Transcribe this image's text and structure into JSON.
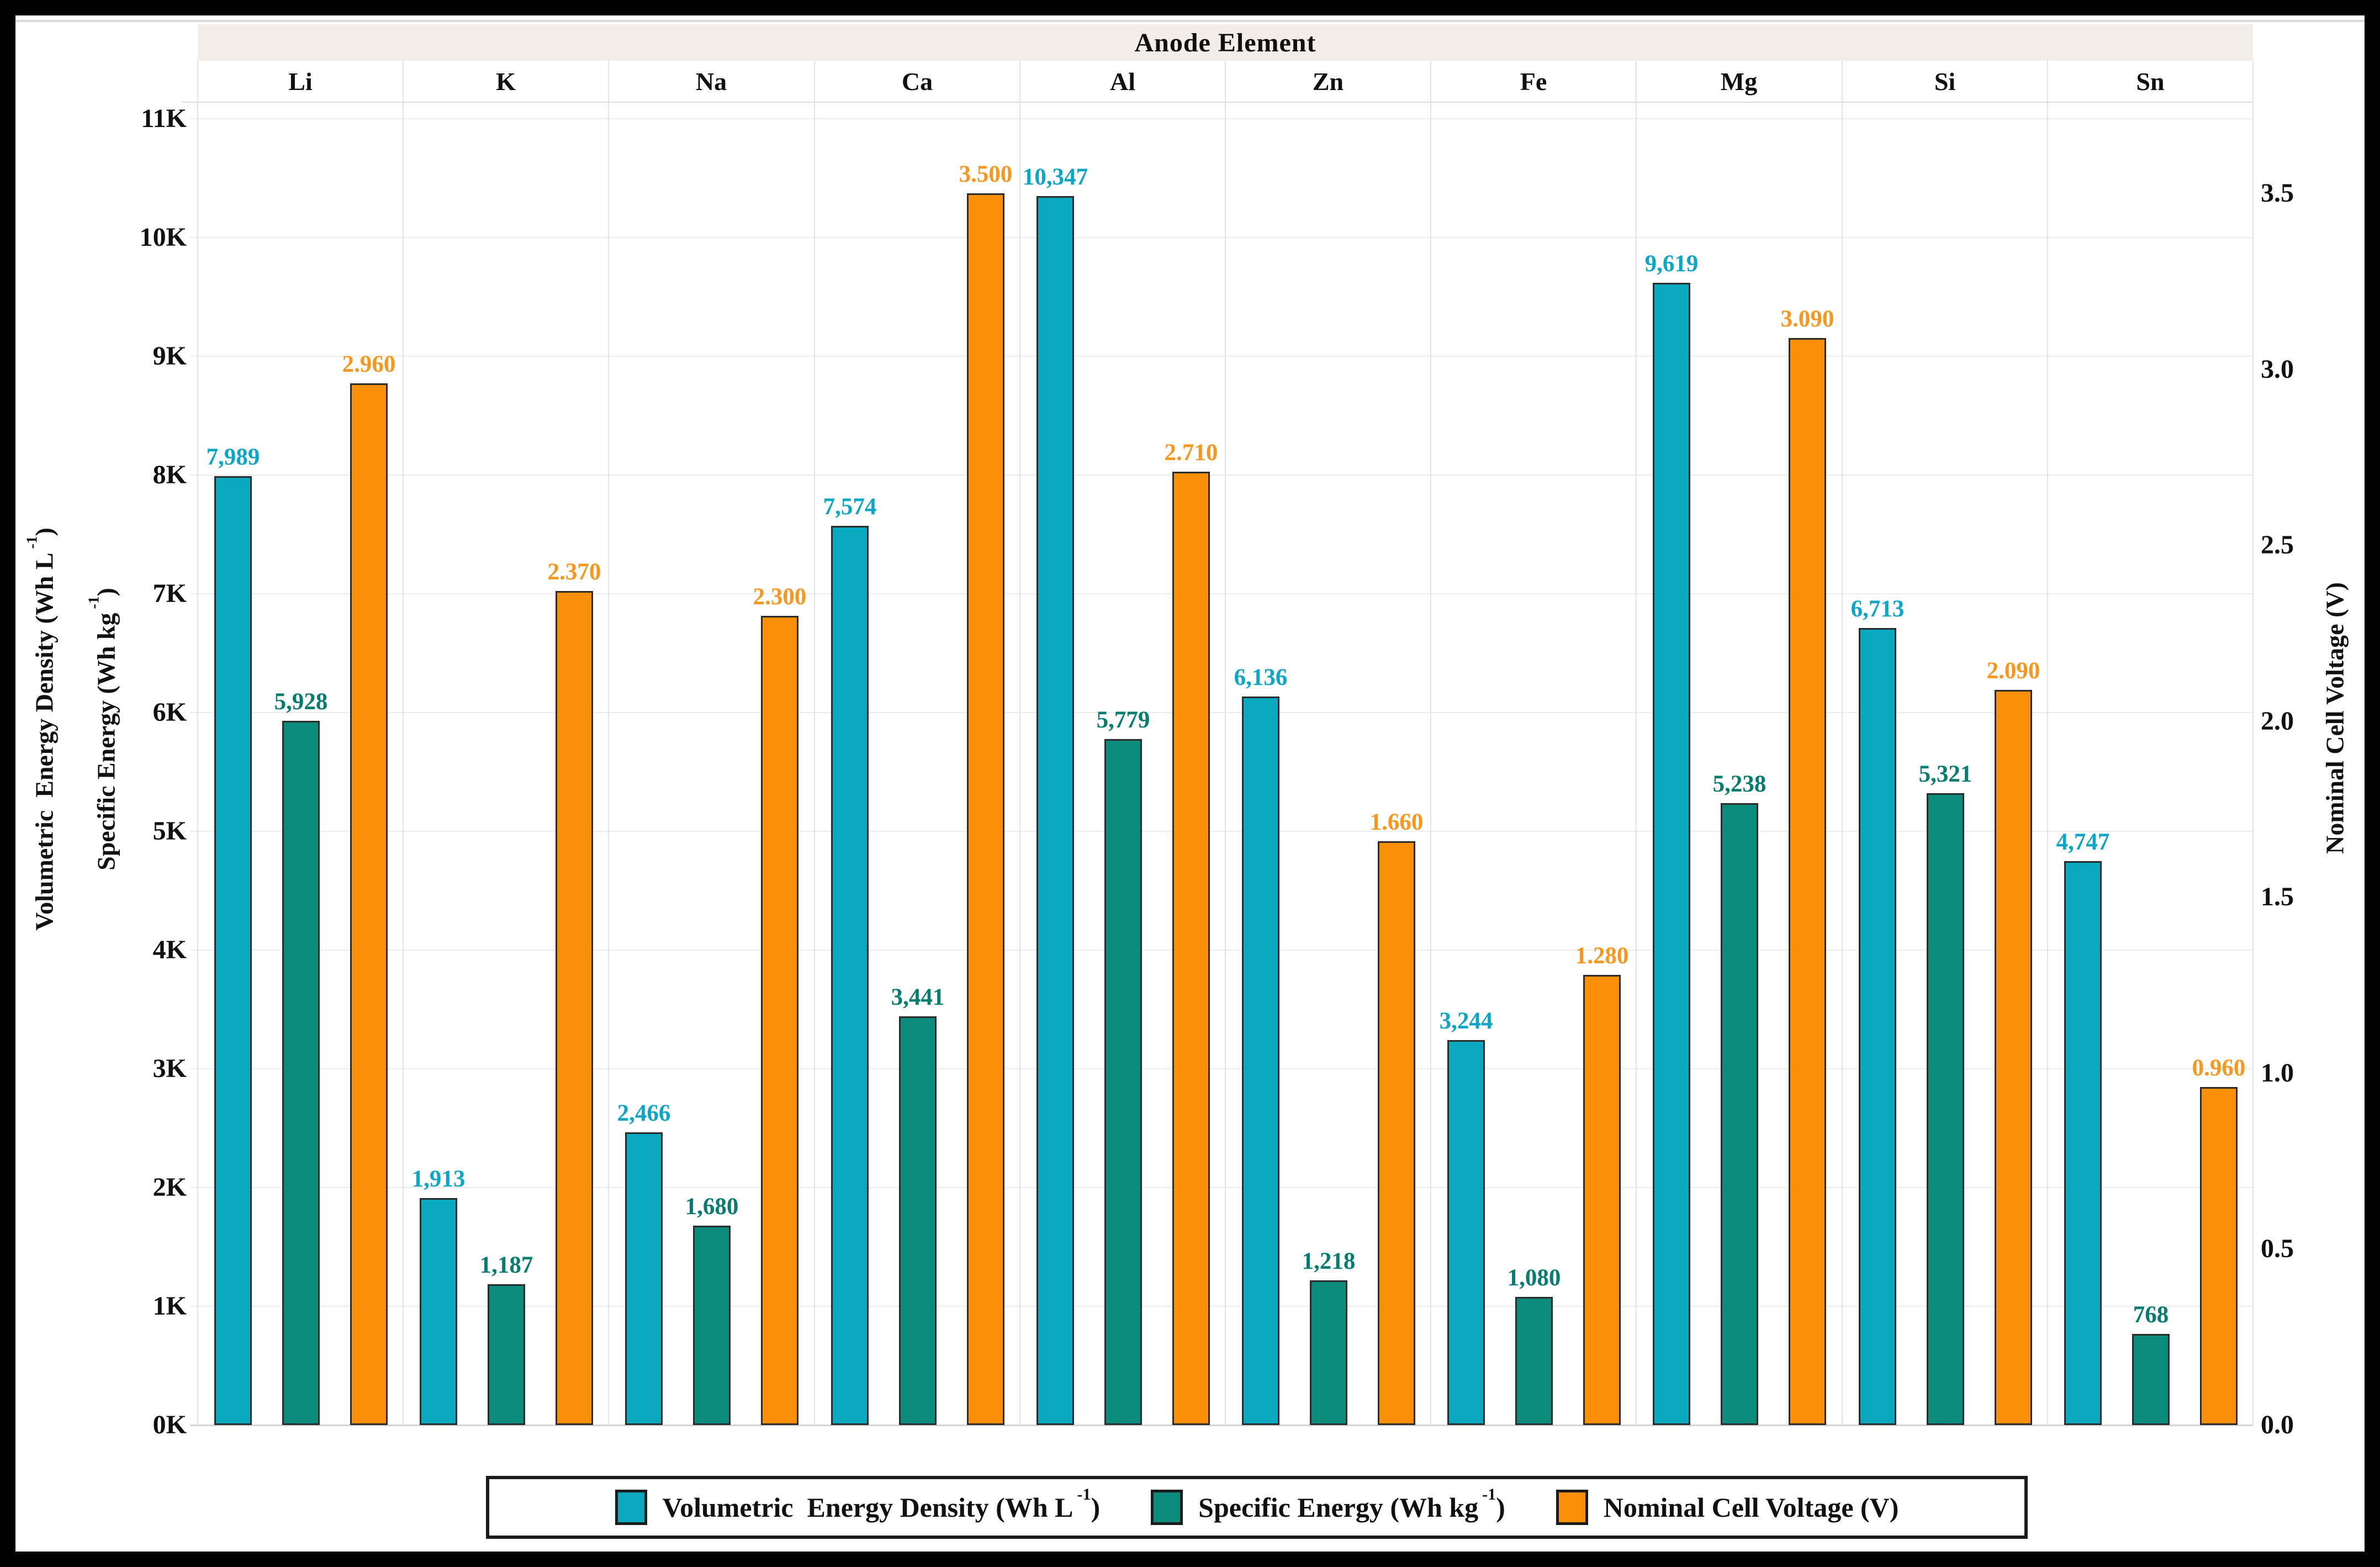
{
  "header": {
    "title": "Anode Element"
  },
  "colors": {
    "volumetric_fill": "#09A8BE",
    "volumetric_label": "#0CA6C6",
    "specific_fill": "#0B8B7B",
    "specific_label": "#067D6F",
    "voltage_fill": "#FA9008",
    "voltage_label": "#F8961E",
    "bar_border": "#2B2B2B",
    "gridline": "#ECECEC",
    "axis_baseline": "#D6D6D6",
    "column_separator": "#E3E3E3",
    "header_strip_bg": "#F2EDE9",
    "frame_border": "#000000"
  },
  "chart_data": {
    "type": "bar",
    "title": "Anode Element",
    "categories": [
      "Li",
      "K",
      "Na",
      "Ca",
      "Al",
      "Zn",
      "Fe",
      "Mg",
      "Si",
      "Sn"
    ],
    "series": [
      {
        "key": "volumetric",
        "axis": "left",
        "name_parts": {
          "base": "Volumetric  Energy Density (Wh L",
          "sup": "-1",
          "end": ")"
        },
        "color": "#09A8BE",
        "label_color": "#0CA6C6",
        "values": [
          7989,
          1913,
          2466,
          7574,
          10347,
          6136,
          3244,
          9619,
          6713,
          4747
        ],
        "labels": [
          "7,989",
          "1,913",
          "2,466",
          "7,574",
          "10,347",
          "6,136",
          "3,244",
          "9,619",
          "6,713",
          "4,747"
        ]
      },
      {
        "key": "specific",
        "axis": "left",
        "name_parts": {
          "base": "Specific Energy (Wh kg",
          "sup": "-1",
          "end": ")"
        },
        "color": "#0B8B7B",
        "label_color": "#067D6F",
        "values": [
          5928,
          1187,
          1680,
          3441,
          5779,
          1218,
          1080,
          5238,
          5321,
          768
        ],
        "labels": [
          "5,928",
          "1,187",
          "1,680",
          "3,441",
          "5,779",
          "1,218",
          "1,080",
          "5,238",
          "5,321",
          "768"
        ]
      },
      {
        "key": "voltage",
        "axis": "right",
        "name_parts": {
          "base": "Nominal Cell Voltage (V)",
          "sup": "",
          "end": ""
        },
        "color": "#FA9008",
        "label_color": "#F8961E",
        "values": [
          2.96,
          2.37,
          2.3,
          3.5,
          2.71,
          1.66,
          1.28,
          3.09,
          2.09,
          0.96
        ],
        "labels": [
          "2.960",
          "2.370",
          "2.300",
          "3.500",
          "2.710",
          "1.660",
          "1.280",
          "3.090",
          "2.090",
          "0.960"
        ]
      }
    ],
    "left_axis": {
      "ticks": [
        "0K",
        "1K",
        "2K",
        "3K",
        "4K",
        "5K",
        "6K",
        "7K",
        "8K",
        "9K",
        "10K",
        "11K"
      ],
      "range": [
        0,
        11000
      ],
      "titles": [
        {
          "base": "Volumetric  Energy Density (Wh L",
          "sup": "-1",
          "end": ")"
        },
        {
          "base": "Specific Energy (Wh kg",
          "sup": "-1",
          "end": ")"
        }
      ]
    },
    "right_axis": {
      "ticks": [
        "0.0",
        "0.5",
        "1.0",
        "1.5",
        "2.0",
        "2.5",
        "3.0",
        "3.5"
      ],
      "range": [
        0,
        3.5
      ],
      "title": {
        "base": "Nominal Cell Voltage (V)",
        "sup": "",
        "end": ""
      },
      "left_units_per_volt": 2963
    },
    "legend_position": "bottom",
    "grid": true
  }
}
